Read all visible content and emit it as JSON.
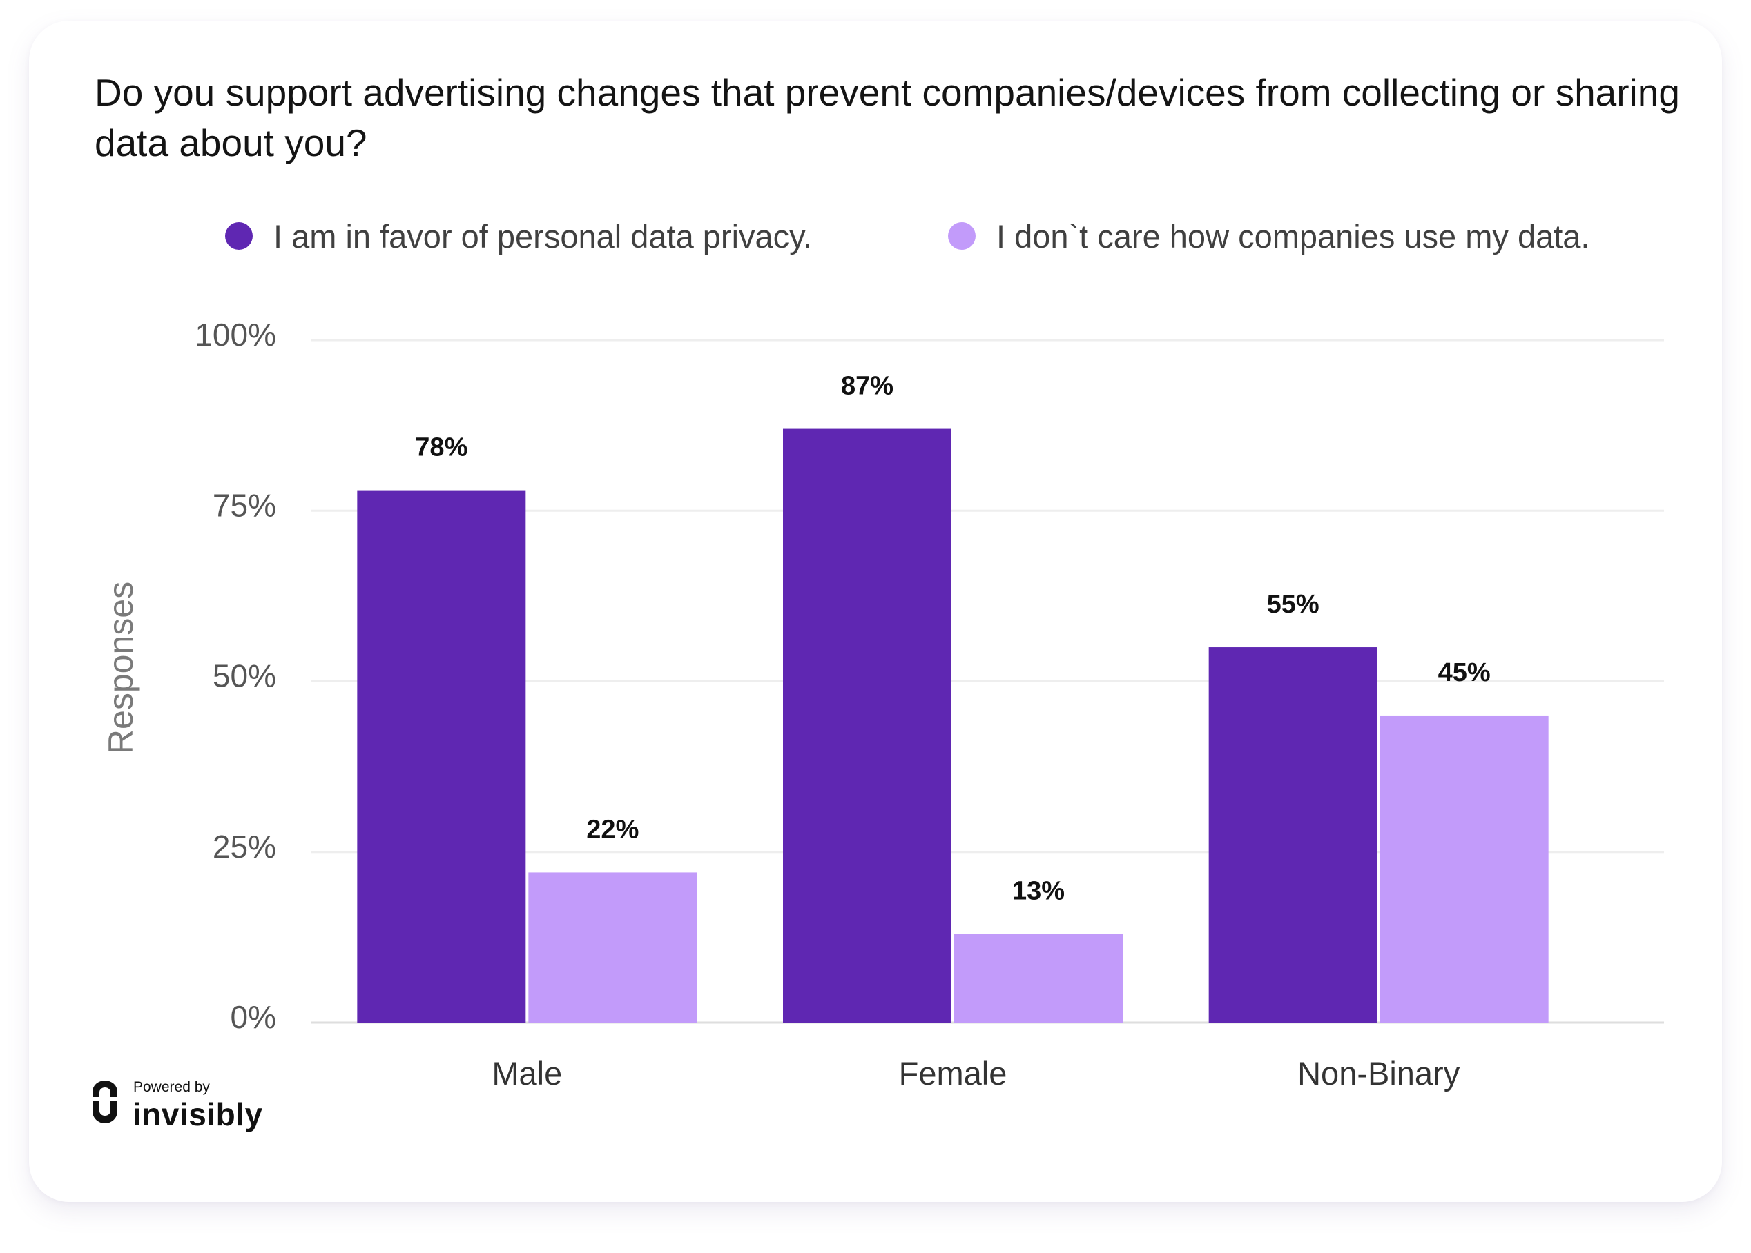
{
  "chart_data": {
    "type": "bar",
    "title": "Do you support advertising changes that prevent companies/devices from collecting or sharing data about you?",
    "xlabel": "",
    "ylabel": "Responses",
    "categories": [
      "Male",
      "Female",
      "Non-Binary"
    ],
    "series": [
      {
        "name": "I am in favor of personal data privacy.",
        "values": [
          78,
          87,
          55
        ],
        "color": "#5f27b2"
      },
      {
        "name": "I don`t care how companies use my data.",
        "values": [
          22,
          13,
          45
        ],
        "color": "#c29bfa"
      }
    ],
    "ylim": [
      0,
      100
    ],
    "yticks": [
      0,
      25,
      50,
      75,
      100
    ],
    "ytick_labels": [
      "0%",
      "25%",
      "50%",
      "75%",
      "100%"
    ],
    "value_labels": [
      [
        "78%",
        "87%",
        "55%"
      ],
      [
        "22%",
        "13%",
        "45%"
      ]
    ],
    "grid": true,
    "legend_position": "top"
  },
  "branding": {
    "powered_by": "Powered by",
    "name": "invisibly",
    "icon": "invisibly-logo-icon"
  }
}
